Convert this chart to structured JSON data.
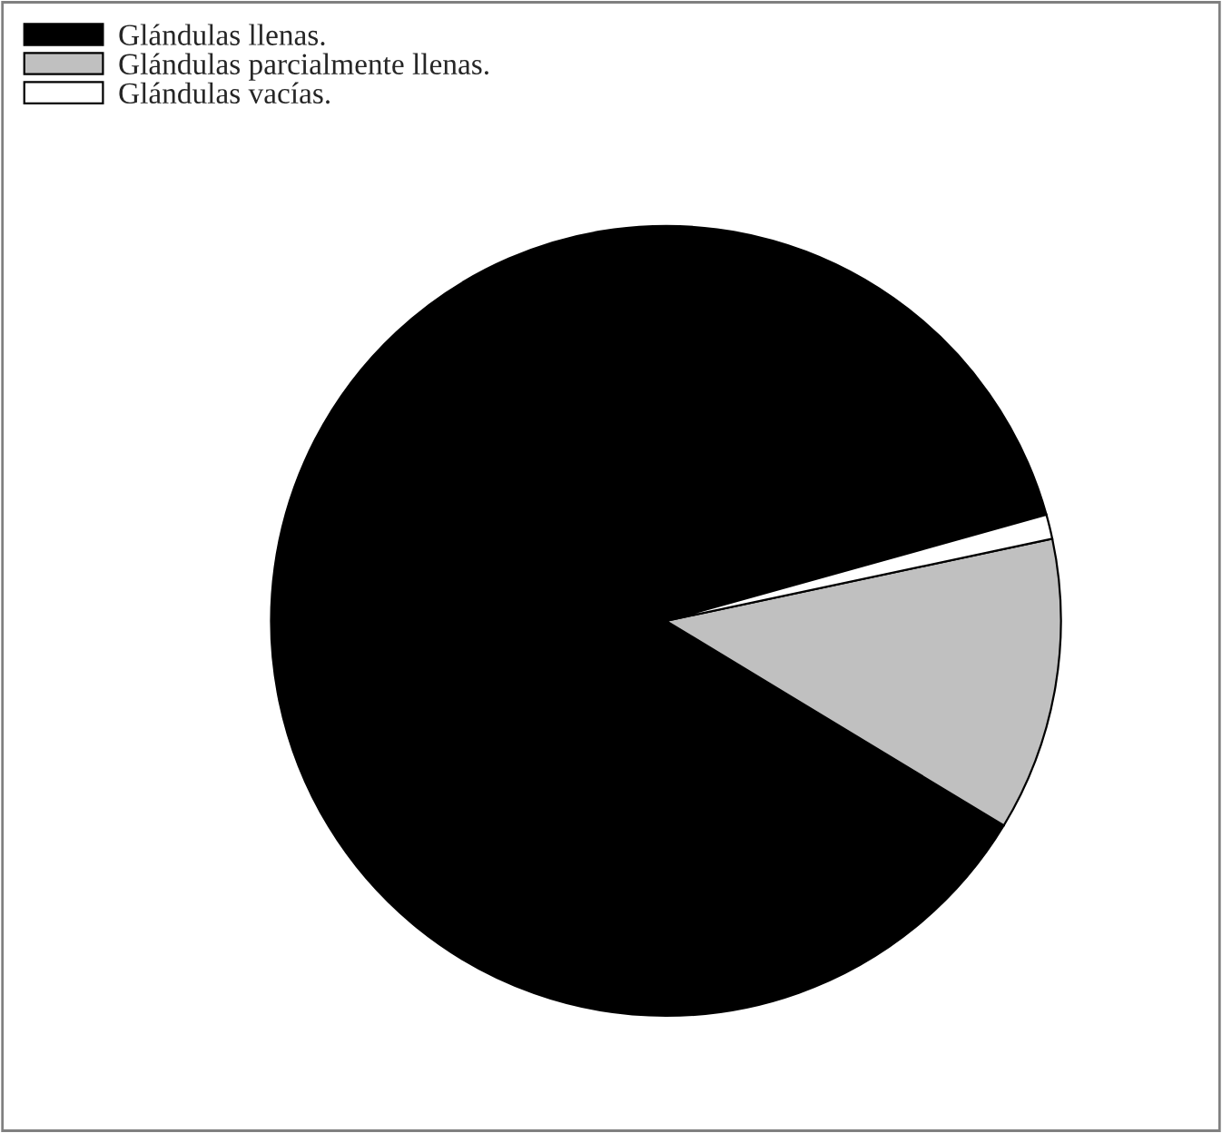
{
  "chart_data": {
    "type": "pie",
    "categories": [
      "Glándulas llenas.",
      "Glándulas parcialmente llenas.",
      "Glándulas vacías."
    ],
    "values": [
      87,
      12,
      1
    ],
    "colors": [
      "#000000",
      "#c0c0c0",
      "#ffffff"
    ],
    "legend": "top left"
  }
}
